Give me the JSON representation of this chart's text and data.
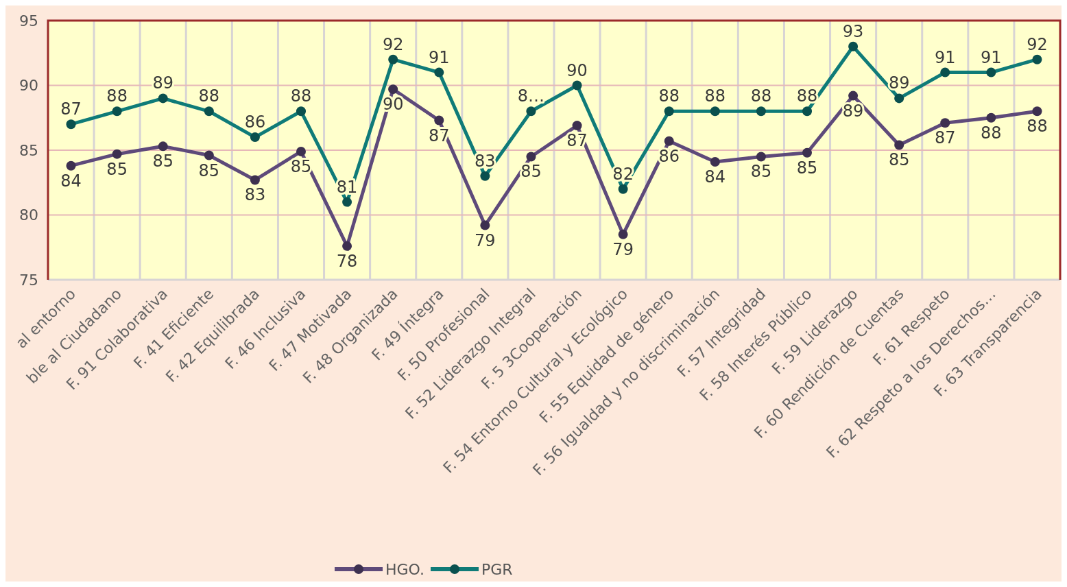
{
  "chart_data": {
    "type": "line",
    "categories": [
      "al entorno",
      "ble al Ciudadano",
      "F. 91 Colaborativa",
      "F. 41 Eficiente",
      "F. 42 Equilibrada",
      "F. 46 Inclusiva",
      "F. 47 Motivada",
      "F. 48 Organizada",
      "F. 49 Íntegra",
      "F. 50 Profesional",
      "F. 52 Liderazgo Integral",
      "F. 5 3Cooperación",
      "F. 54 Entorno Cultural y Ecológico",
      "F. 55 Equidad de género",
      "F. 56 Igualdad y no discriminación",
      "F. 57 Integridad",
      "F. 58 Interés Público",
      "F. 59 Liderazgo",
      "F. 60 Rendición de Cuentas",
      "F. 61 Respeto",
      "F. 62 Respeto a los Derechos…",
      "F. 63 Transparencia"
    ],
    "series": [
      {
        "name": "HGO.",
        "color": "#5e4a7a",
        "values": [
          83.8,
          84.7,
          85.3,
          84.6,
          82.7,
          84.9,
          77.6,
          89.7,
          87.3,
          79.2,
          84.5,
          86.9,
          78.5,
          85.7,
          84.1,
          84.5,
          84.8,
          89.2,
          85.4,
          87.1,
          87.5,
          88.0
        ],
        "value_labels": [
          "84",
          "85",
          "85",
          "85",
          "83",
          "85",
          "78",
          "90",
          "87",
          "79",
          "85",
          "87",
          "79",
          "86",
          "84",
          "85",
          "85",
          "89",
          "85",
          "87",
          "88",
          "88"
        ]
      },
      {
        "name": "PGR",
        "color": "#0f7b78",
        "values": [
          87,
          88,
          89,
          88,
          86,
          88,
          81,
          92,
          91,
          83,
          88,
          90,
          82,
          88,
          88,
          88,
          88,
          93,
          89,
          91,
          91,
          92
        ],
        "value_labels": [
          "87",
          "88",
          "89",
          "88",
          "86",
          "88",
          "81",
          "92",
          "91",
          "83",
          "8…",
          "90",
          "82",
          "88",
          "88",
          "88",
          "88",
          "93",
          "89",
          "91",
          "91",
          "92"
        ]
      }
    ],
    "ylim": [
      75,
      95
    ],
    "yticks": [
      75,
      80,
      85,
      90,
      95
    ],
    "grid": true,
    "legend": "bottom",
    "marker": "circle",
    "line_style": "solid"
  }
}
